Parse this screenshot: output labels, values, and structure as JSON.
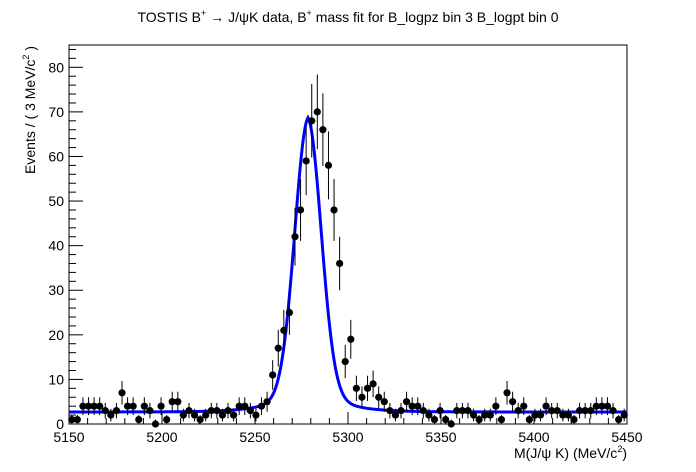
{
  "chart_data": {
    "type": "scatter",
    "title_parts": [
      "TOSTIS B",
      "+",
      " → J/ψK data, B",
      "+",
      " mass fit for B_logpz bin 3 B_logpt bin 0"
    ],
    "xlabel_parts": [
      "M(J/ψ K) (MeV/c",
      "2",
      ")"
    ],
    "ylabel_parts": [
      "Events / ( 3 MeV/c",
      "2",
      " )"
    ],
    "xlim": [
      5150,
      5450
    ],
    "ylim": [
      0,
      85
    ],
    "x_ticks": [
      5150,
      5200,
      5250,
      5300,
      5350,
      5400,
      5450
    ],
    "y_ticks": [
      0,
      10,
      20,
      30,
      40,
      50,
      60,
      70,
      80
    ],
    "x_tick_labels": [
      "5150",
      "5200",
      "5250",
      "5300",
      "5350",
      "5400",
      "5450"
    ],
    "y_tick_labels": [
      "0",
      "10",
      "20",
      "30",
      "40",
      "50",
      "60",
      "70",
      "80"
    ],
    "series": [
      {
        "kind": "points_with_errors",
        "color": "#000000",
        "x": [
          5151.5,
          5154.5,
          5157.5,
          5160.5,
          5163.5,
          5166.5,
          5169.5,
          5172.5,
          5175.5,
          5178.5,
          5181.5,
          5184.5,
          5187.5,
          5190.5,
          5193.5,
          5196.5,
          5199.5,
          5202.5,
          5205.5,
          5208.5,
          5211.5,
          5214.5,
          5217.5,
          5220.5,
          5223.5,
          5226.5,
          5229.5,
          5232.5,
          5235.5,
          5238.5,
          5241.5,
          5244.5,
          5247.5,
          5250.5,
          5253.5,
          5256.5,
          5259.5,
          5262.5,
          5265.5,
          5268.5,
          5271.5,
          5274.5,
          5277.5,
          5280.5,
          5283.5,
          5286.5,
          5289.5,
          5292.5,
          5295.5,
          5298.5,
          5301.5,
          5304.5,
          5307.5,
          5310.5,
          5313.5,
          5316.5,
          5319.5,
          5322.5,
          5325.5,
          5328.5,
          5331.5,
          5334.5,
          5337.5,
          5340.5,
          5343.5,
          5346.5,
          5349.5,
          5352.5,
          5355.5,
          5358.5,
          5361.5,
          5364.5,
          5367.5,
          5370.5,
          5373.5,
          5376.5,
          5379.5,
          5382.5,
          5385.5,
          5388.5,
          5391.5,
          5394.5,
          5397.5,
          5400.5,
          5403.5,
          5406.5,
          5409.5,
          5412.5,
          5415.5,
          5418.5,
          5421.5,
          5424.5,
          5427.5,
          5430.5,
          5433.5,
          5436.5,
          5439.5,
          5442.5,
          5445.5,
          5448.5
        ],
        "y": [
          1,
          1,
          4,
          4,
          4,
          4,
          3,
          2,
          3,
          7,
          4,
          4,
          1,
          4,
          3,
          0,
          4,
          1,
          5,
          5,
          2,
          3,
          2,
          1,
          2,
          3,
          3,
          2,
          3,
          2,
          4,
          4,
          3,
          2,
          4,
          5,
          11,
          17,
          21,
          25,
          42,
          48,
          59,
          68,
          70,
          66,
          58,
          48,
          36,
          14,
          19,
          8,
          6,
          8,
          9,
          6,
          5,
          3,
          2,
          3,
          5,
          4,
          4,
          3,
          2,
          1,
          3,
          1,
          0,
          3,
          3,
          3,
          2,
          1,
          2,
          2,
          4,
          1,
          7,
          5,
          3,
          4,
          1,
          2,
          2,
          4,
          3,
          3,
          2,
          2,
          1,
          3,
          3,
          3,
          4,
          4,
          4,
          3,
          1,
          2
        ]
      },
      {
        "kind": "fit_curve",
        "color": "#0000ff",
        "background_level": 2.7,
        "peak_mean": 5278.5,
        "peak_height": 66.0,
        "peak_sigma": 7.2
      }
    ]
  }
}
